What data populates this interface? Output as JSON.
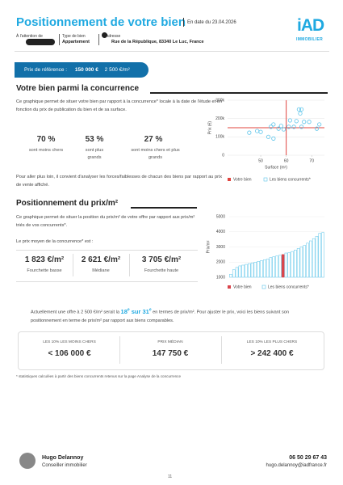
{
  "header": {
    "title": "Positionnement de votre bien",
    "date": "En date du 23.04.2026",
    "logo": "iAD",
    "logo_sub": "IMMOBILIER",
    "fields": [
      {
        "label": "À l'attention de"
      },
      {
        "label": "Type de bien",
        "value": "Appartement"
      },
      {
        "label": "Adresse",
        "value": "Rue de la République, 83340 Le Luc, France"
      }
    ]
  },
  "price_ref": {
    "label": "Prix de référence :",
    "price": "150 000 €",
    "per_m2": "2 500 €/m²"
  },
  "competition": {
    "title": "Votre bien parmi la concurrence",
    "intro": "Ce graphique permet de situer votre bien par rapport à la concurrence* locale à la date de l'étude et en fonction du prix de publication du bien et de sa surface.",
    "stats": [
      {
        "value": "70 %",
        "label": "sont moins chers"
      },
      {
        "value": "53 %",
        "label": "sont plus grands"
      },
      {
        "value": "27 %",
        "label": "sont moins chers et plus grands"
      }
    ],
    "outro": "Pour aller plus loin, il convient d'analyser les forces/faiblesses de chacun des biens par rapport au prix de vente affiché.",
    "chart": {
      "type": "scatter",
      "x_label": "Surface (m²)",
      "y_label": "Prix (€)",
      "xlim": [
        37,
        75
      ],
      "xticks": [
        50,
        60,
        70
      ],
      "ylim": [
        0,
        300000
      ],
      "yticks": [
        {
          "value": 0,
          "label": "0"
        },
        {
          "value": 100000,
          "label": "100k"
        },
        {
          "value": 200000,
          "label": "200k"
        },
        {
          "value": 300000,
          "label": "300k"
        }
      ],
      "grid": true,
      "subject": {
        "name": "Votre bien",
        "color": "#e0443e",
        "x": 60,
        "y": 150000
      },
      "series": [
        {
          "name": "Les biens concurrents*",
          "color": "#5bc4ea",
          "x": [
            45.5,
            48.6,
            50,
            53,
            55,
            55,
            54,
            57,
            58,
            59,
            61,
            61.5,
            63,
            64,
            65,
            65.5,
            66,
            66,
            67,
            69,
            72,
            73
          ],
          "values": [
            123000,
            132000,
            127000,
            100000,
            91000,
            168000,
            155000,
            145000,
            160000,
            141000,
            155000,
            190000,
            155000,
            186000,
            250000,
            228000,
            250000,
            155000,
            182000,
            182000,
            145000,
            168000
          ]
        }
      ]
    }
  },
  "price_m2": {
    "title": "Positionnement du prix/m²",
    "intro": "Ce graphique permet de situer la position du prix/m² de votre offre par rapport aux prix/m² triés de vos concurrents*.",
    "average_label": "Le prix moyen de la concurrence* est :",
    "stats": [
      {
        "value": "1 823 €/m²",
        "label": "Fourchette basse"
      },
      {
        "value": "2 621 €/m²",
        "label": "Médiane"
      },
      {
        "value": "3 705 €/m²",
        "label": "Fourchette haute"
      }
    ],
    "chart": {
      "type": "bar",
      "y_label": "Prix/m²",
      "ylim": [
        1000,
        5000
      ],
      "yticks": [
        1000,
        2000,
        3000,
        4000,
        5000
      ],
      "grid": true,
      "highlight_index": 17,
      "highlight_name": "Votre bien",
      "highlight_color": "#d9444b",
      "series": [
        {
          "name": "Les biens concurrents*",
          "color": "#5bc4ea",
          "values": [
            1200,
            1500,
            1650,
            1750,
            1800,
            1850,
            1900,
            1950,
            2000,
            2050,
            2100,
            2150,
            2200,
            2300,
            2350,
            2400,
            2450,
            2500,
            2600,
            2621,
            2700,
            2800,
            2900,
            3000,
            3100,
            3250,
            3400,
            3550,
            3705,
            3900,
            3950
          ]
        }
      ]
    },
    "rank": {
      "before": "Actuellement une offre à 2 500 €/m² serait la ",
      "num": "18",
      "sup": "e",
      "mid": " sur 31",
      "sup2": "e",
      "after": " en termes de prix/m². Pour ajuster le prix, voici les biens suivant son positionnement en terme de prix/m² par rapport aux biens comparables."
    },
    "ranges": [
      {
        "label": "LES 10% LES MOINS CHERS",
        "value": "< 106 000 €"
      },
      {
        "label": "PRIX MÉDIAN",
        "value": "147 750 €"
      },
      {
        "label": "LES 10% LES PLUS CHERS",
        "value": "> 242 400 €"
      }
    ]
  },
  "footnote": "* statistiques calculées à partir des biens concurrents retenus sur la page Analyse de la concurrence",
  "footer": {
    "name": "Hugo Delannoy",
    "role": "Conseiller immobilier",
    "phone": "06 50 29 67 43",
    "email": "hugo.delannoy@iadfrance.fr",
    "page": "11"
  }
}
